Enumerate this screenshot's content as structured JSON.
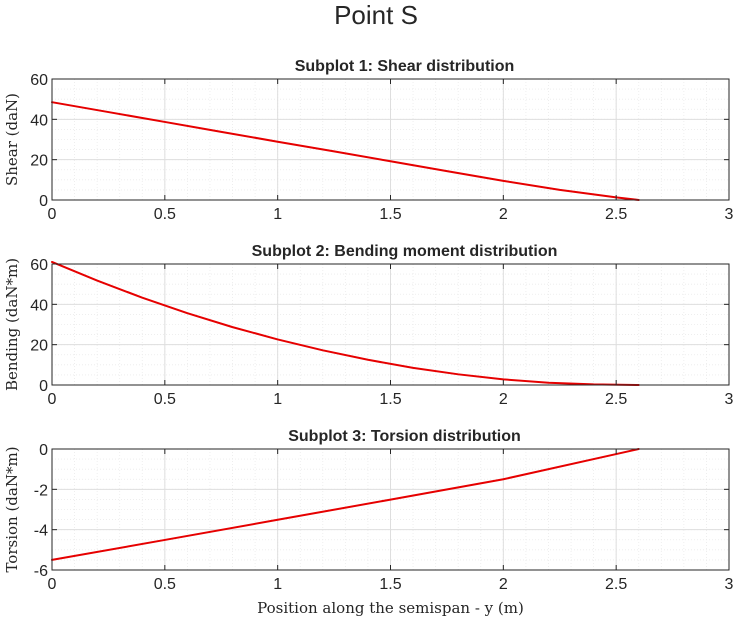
{
  "figure_title": "Point S",
  "colors": {
    "line": "#e60000",
    "axes": "#262626",
    "grid_major": "#dedede",
    "grid_minor": "#ebebeb"
  },
  "chart_data": [
    {
      "type": "line",
      "title": "Subplot 1: Shear distribution",
      "ylabel": "Shear (daN)",
      "xlabel": "",
      "xlim": [
        0,
        3
      ],
      "ylim": [
        0,
        60
      ],
      "xticks": [
        0,
        0.5,
        1,
        1.5,
        2,
        2.5,
        3
      ],
      "yticks": [
        0,
        20,
        40,
        60
      ],
      "grid": true,
      "minor_grid": true,
      "series": [
        {
          "x": [
            0,
            0.25,
            0.5,
            0.75,
            1.0,
            1.25,
            1.5,
            1.75,
            2.0,
            2.25,
            2.5,
            2.6
          ],
          "y": [
            48.5,
            43.6,
            38.7,
            33.8,
            28.9,
            24.1,
            19.2,
            14.3,
            9.5,
            5.0,
            1.3,
            0
          ]
        }
      ]
    },
    {
      "type": "line",
      "title": "Subplot 2: Bending moment distribution",
      "ylabel": "Bending (daN*m)",
      "xlabel": "",
      "xlim": [
        0,
        3
      ],
      "ylim": [
        0,
        60
      ],
      "xticks": [
        0,
        0.5,
        1,
        1.5,
        2,
        2.5,
        3
      ],
      "yticks": [
        0,
        20,
        40,
        60
      ],
      "grid": true,
      "minor_grid": true,
      "series": [
        {
          "x": [
            0,
            0.2,
            0.4,
            0.6,
            0.8,
            1.0,
            1.2,
            1.4,
            1.6,
            1.8,
            2.0,
            2.2,
            2.4,
            2.6
          ],
          "y": [
            61,
            51.8,
            43.3,
            35.6,
            28.7,
            22.6,
            17.2,
            12.5,
            8.5,
            5.3,
            2.8,
            1.1,
            0.3,
            0
          ]
        }
      ]
    },
    {
      "type": "line",
      "title": "Subplot 3: Torsion distribution",
      "ylabel": "Torsion (daN*m)",
      "xlabel": "Position along the semispan - y (m)",
      "xlim": [
        0,
        3
      ],
      "ylim": [
        -6,
        0
      ],
      "xticks": [
        0,
        0.5,
        1,
        1.5,
        2,
        2.5,
        3
      ],
      "yticks": [
        -6,
        -4,
        -2,
        0
      ],
      "grid": true,
      "minor_grid": true,
      "series": [
        {
          "x": [
            0,
            0.5,
            1.0,
            1.5,
            2.0,
            2.5,
            2.6
          ],
          "y": [
            -5.5,
            -4.51,
            -3.51,
            -2.51,
            -1.5,
            -0.25,
            0
          ]
        }
      ]
    }
  ]
}
